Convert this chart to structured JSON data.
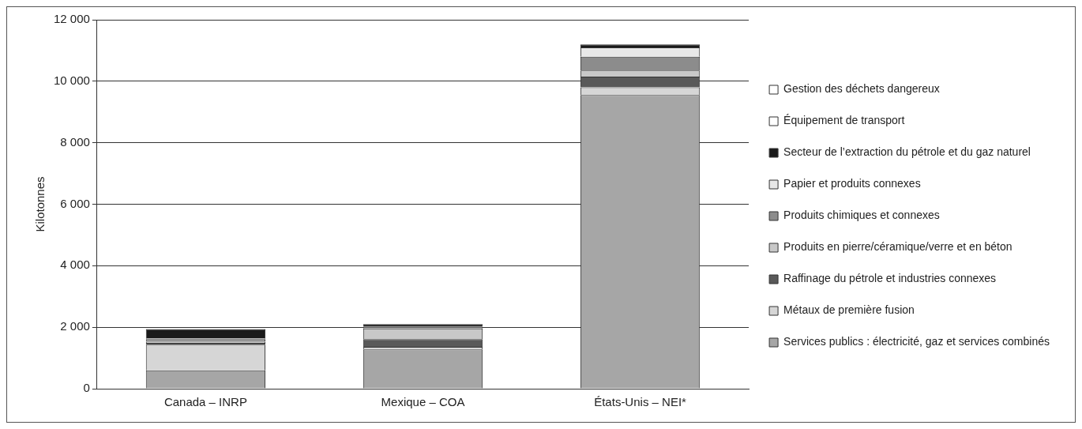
{
  "chart_data": {
    "type": "bar",
    "stacked": true,
    "ylabel": "Kilotonnes",
    "categories": [
      "Canada – INRP",
      "Mexique – COA",
      "États-Unis – NEI*"
    ],
    "series": [
      {
        "name": "Services publics : électricité, gaz et services combinés",
        "color": "#a6a6a6",
        "values": [
          600,
          1280,
          9550
        ]
      },
      {
        "name": "Métaux de première fusion",
        "color": "#d6d6d6",
        "values": [
          830,
          80,
          250
        ]
      },
      {
        "name": "Raffinage du pétrole et industries connexes",
        "color": "#595959",
        "values": [
          60,
          250,
          350
        ]
      },
      {
        "name": "Produits en pierre/céramique/verre et en béton",
        "color": "#c8c8c8",
        "values": [
          40,
          350,
          200
        ]
      },
      {
        "name": "Produits chimiques et connexes",
        "color": "#8c8c8c",
        "values": [
          80,
          60,
          450
        ]
      },
      {
        "name": "Papier et produits connexes",
        "color": "#e8e8e8",
        "values": [
          30,
          null,
          300
        ]
      },
      {
        "name": "Secteur de l’extraction du pétrole et du gaz naturel",
        "color": "#1a1a1a",
        "values": [
          300,
          80,
          100
        ]
      },
      {
        "name": "Équipement de transport",
        "color": "#ffffff",
        "values": [
          0,
          0,
          0
        ]
      },
      {
        "name": "Gestion des déchets dangereux",
        "color": "#ffffff",
        "values": [
          0,
          0,
          0
        ]
      }
    ],
    "ylim": [
      0,
      12000
    ],
    "yticks": [
      0,
      {
        "value": 2000,
        "label": "2 000"
      },
      {
        "value": 4000,
        "label": "4 000"
      },
      {
        "value": 6000,
        "label": "6 000"
      },
      {
        "value": 8000,
        "label": "8 000"
      },
      {
        "value": 10000,
        "label": "10 000"
      },
      {
        "value": 12000,
        "label": "12 000"
      }
    ],
    "grid": "y",
    "legend": "right"
  }
}
